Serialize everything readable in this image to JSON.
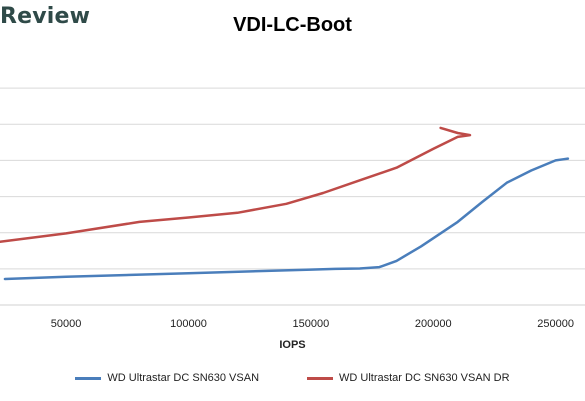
{
  "watermark": "Review",
  "chart_data": {
    "type": "line",
    "title": "VDI-LC-Boot",
    "xlabel": "IOPS",
    "ylabel": "",
    "xlim": [
      23000,
      262000
    ],
    "ylim": [
      0,
      7
    ],
    "xticks": [
      50000,
      100000,
      150000,
      200000,
      250000
    ],
    "xtick_labels": [
      "50000",
      "100000",
      "150000",
      "200000",
      "250000"
    ],
    "yticks": [
      1,
      2,
      3,
      4,
      5,
      6
    ],
    "grid": true,
    "legend_position": "bottom",
    "series": [
      {
        "name": "WD Ultrastar DC SN630 VSAN",
        "color": "#4a7ebb",
        "x": [
          25000,
          50000,
          100000,
          150000,
          160000,
          170000,
          178000,
          185000,
          195000,
          210000,
          220000,
          230000,
          240000,
          250000,
          253000,
          255000
        ],
        "y": [
          0.72,
          0.78,
          0.88,
          0.98,
          1.0,
          1.01,
          1.05,
          1.22,
          1.62,
          2.3,
          2.85,
          3.38,
          3.72,
          4.0,
          4.03,
          4.05
        ]
      },
      {
        "name": "WD Ultrastar DC SN630 VSAN DR",
        "color": "#be4b48",
        "x": [
          23000,
          50000,
          80000,
          100000,
          120000,
          140000,
          155000,
          170000,
          185000,
          200000,
          210000,
          215000,
          210000,
          203000
        ],
        "y": [
          1.75,
          1.98,
          2.3,
          2.42,
          2.55,
          2.8,
          3.1,
          3.45,
          3.8,
          4.32,
          4.65,
          4.7,
          4.76,
          4.9
        ]
      }
    ]
  }
}
